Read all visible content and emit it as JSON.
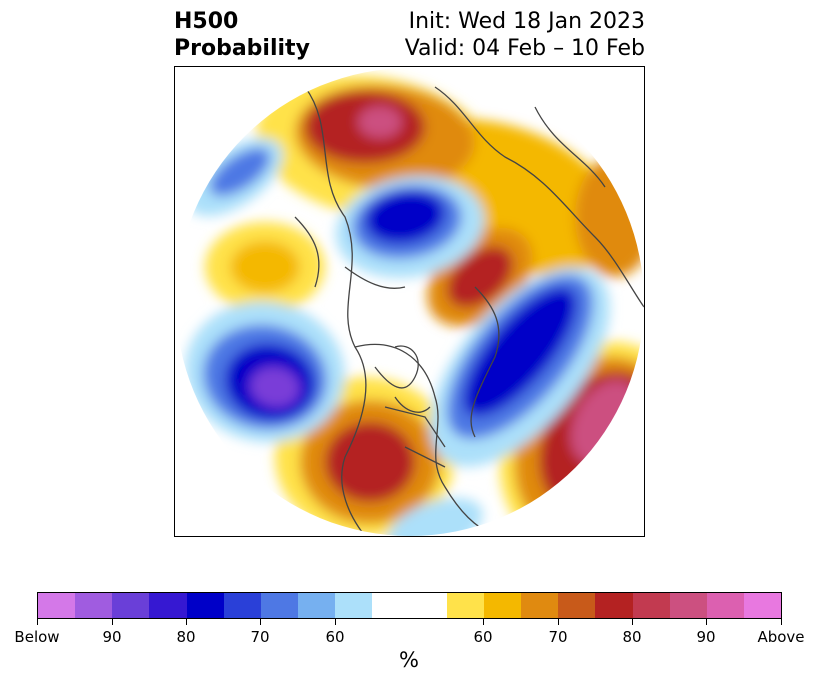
{
  "title": {
    "left_line1": "H500",
    "left_line2": "Probability",
    "right_line1": "Init: Wed 18 Jan 2023",
    "right_line2": "Valid: 04 Feb – 10 Feb"
  },
  "colorbar": {
    "unit": "%",
    "colors": [
      "#d478e8",
      "#a05ce0",
      "#6a3fd8",
      "#3618d2",
      "#0000c8",
      "#2a40d8",
      "#4e78e4",
      "#76b0f0",
      "#ace0fa",
      "#ffffff",
      "#ffffff",
      "#ffe24a",
      "#f4b800",
      "#e08a10",
      "#c85a1a",
      "#b42222",
      "#c23a50",
      "#cc5080",
      "#dc60b0",
      "#e878e0"
    ],
    "tick_labels": [
      "Below",
      "90",
      "80",
      "70",
      "60",
      "60",
      "70",
      "80",
      "90",
      "Above"
    ]
  },
  "map_colors": {
    "land_outline": "#444444",
    "below_strong": "#7a3ed8",
    "below_core": "#0000c8",
    "below_mid": "#4e78e4",
    "below_light": "#ace0fa",
    "above_light": "#ffe24a",
    "above_mid": "#f4b800",
    "above_orange": "#e08a10",
    "above_red": "#b42222",
    "above_pink": "#cc5080"
  }
}
